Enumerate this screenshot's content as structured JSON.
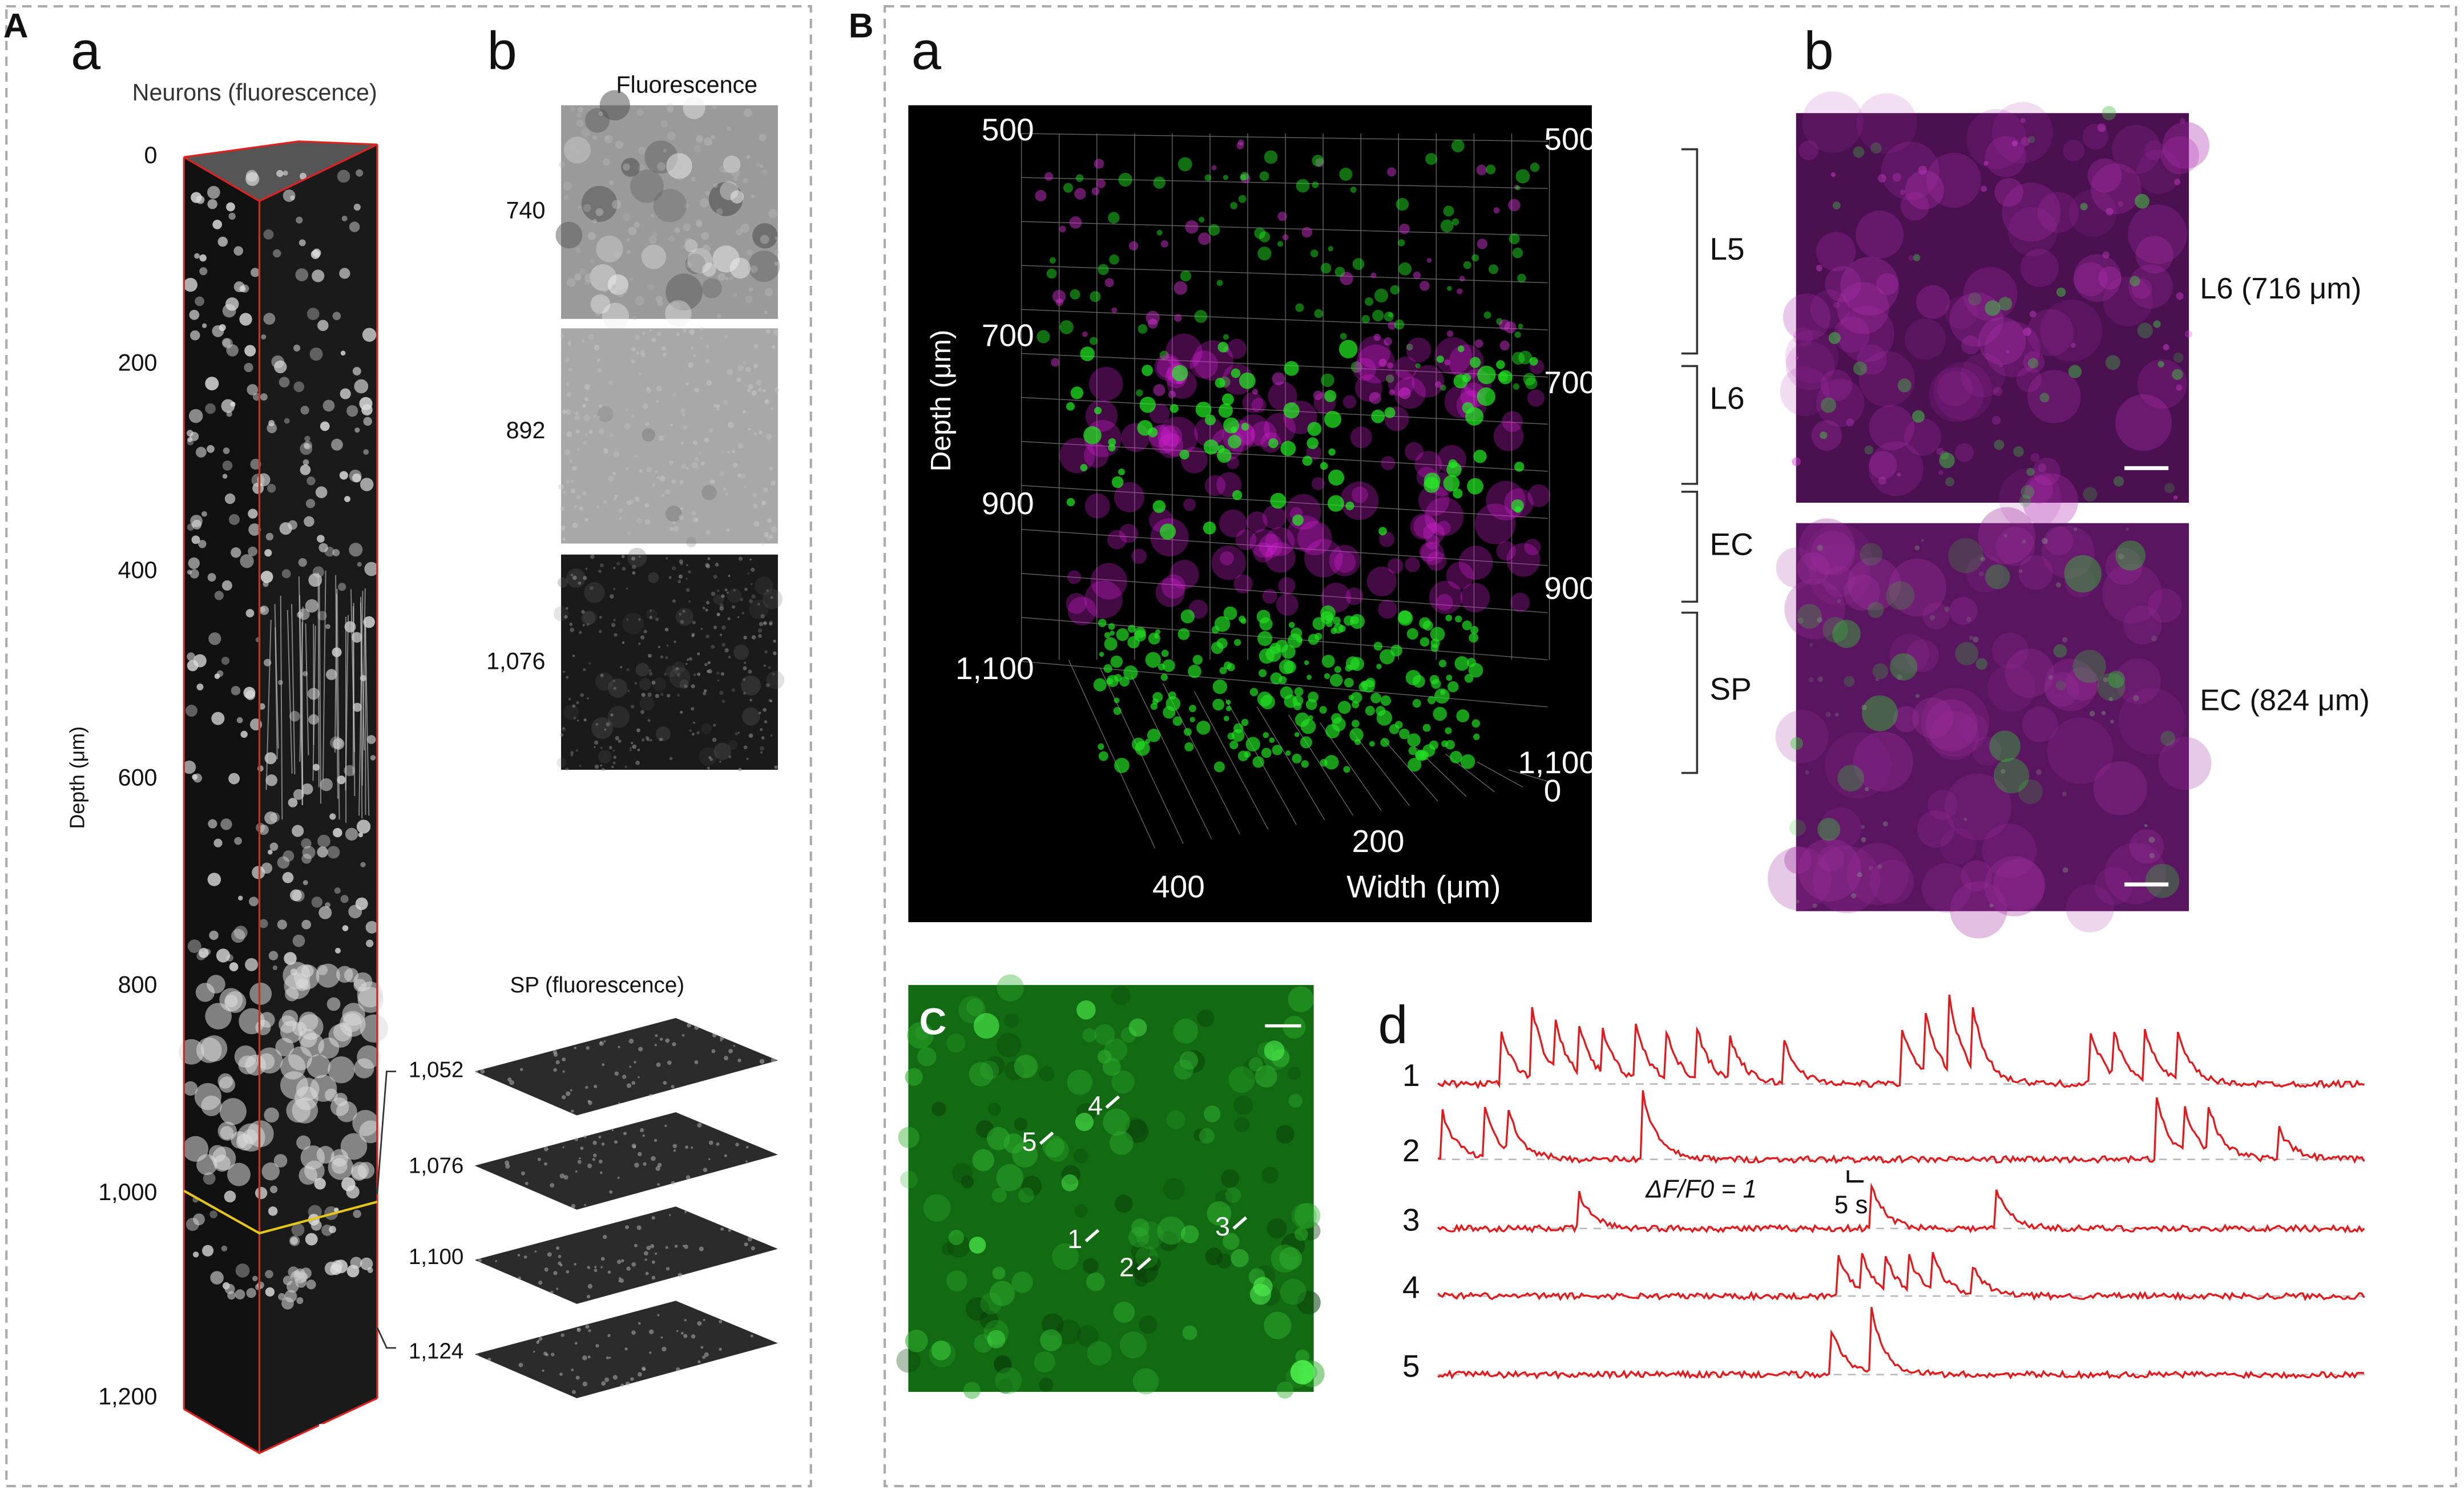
{
  "panel_A": {
    "label": "A",
    "a": {
      "label": "a",
      "title": "Neurons (fluorescence)",
      "depth_ticks": [
        "0",
        "200",
        "400",
        "600",
        "800",
        "1,000",
        "1,200"
      ],
      "axis_label": "Depth (μm)"
    },
    "b": {
      "label": "b",
      "title": "Fluorescence",
      "image_depths": [
        "740",
        "892",
        "1,076"
      ],
      "sp_title": "SP (fluorescence)",
      "sp_depths": [
        "1,052",
        "1,076",
        "1,100",
        "1,124"
      ]
    }
  },
  "panel_B": {
    "label": "B",
    "a": {
      "label": "a",
      "depth_ticks_left": [
        "500",
        "700",
        "900",
        "1,100"
      ],
      "axis_label_depth": "Depth (μm)",
      "depth_ticks_right": [
        "500",
        "700",
        "900",
        "1,100"
      ],
      "width_ticks": [
        "0",
        "200",
        "400"
      ],
      "axis_label_width": "Width (μm)",
      "layers": [
        "L5",
        "L6",
        "EC",
        "SP"
      ]
    },
    "b": {
      "label": "b",
      "images": [
        "L6 (716 μm)",
        "EC (824 μm)"
      ]
    },
    "c": {
      "label": "C",
      "cells": [
        "1",
        "2",
        "3",
        "4",
        "5"
      ]
    },
    "d": {
      "label": "d",
      "traces": [
        "1",
        "2",
        "3",
        "4",
        "5"
      ],
      "scale_y": "ΔF/F0 = 1",
      "scale_x": "5 s"
    }
  }
}
